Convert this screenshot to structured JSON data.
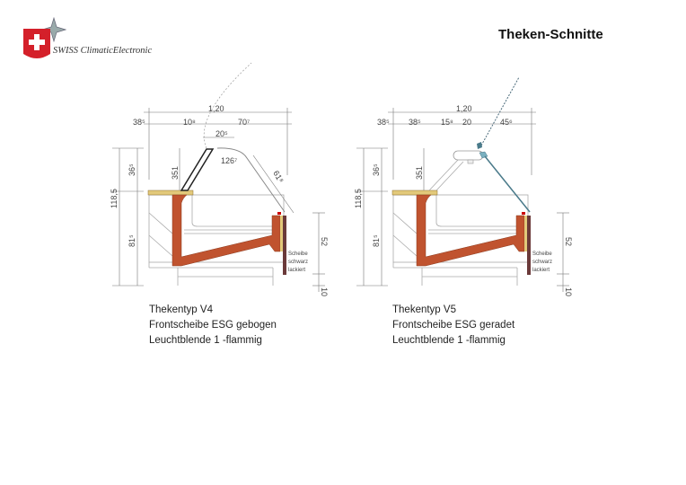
{
  "header": {
    "title": "Theken-Schnitte",
    "brand_name": "SWISS ClimaticElectronic"
  },
  "colors": {
    "frame": "#c0532f",
    "top": "#e2c97a",
    "panel": "#6b3a3a",
    "glass_v5": "#4a7a8a",
    "logo_red": "#d4202a"
  },
  "diagrams": [
    {
      "dims": {
        "total_width": "1,20",
        "overhang": "38⁵",
        "d1": "10⁸",
        "d2": "70⁷",
        "d3": "20⁵",
        "angle": "126⁷",
        "glass": "61⁸",
        "total_height": "118,5",
        "upper_height": "36⁵",
        "lower_height": "81⁵",
        "inner": "351",
        "front_height": "52",
        "foot": "10"
      },
      "note": [
        "Scheibe",
        "schwarz",
        "lackiert"
      ],
      "caption": [
        "Thekentyp V4",
        "Frontscheibe ESG gebogen",
        "Leuchtblende 1 -flammig"
      ]
    },
    {
      "dims": {
        "total_width": "1,20",
        "overhang": "38⁵",
        "d1": "38⁵",
        "d2": "15⁸",
        "d3": "20",
        "d4": "45⁶",
        "total_height": "118,5",
        "upper_height": "36⁵",
        "lower_height": "81⁵",
        "inner": "351",
        "front_height": "52",
        "foot": "10"
      },
      "note": [
        "Scheibe",
        "schwarz",
        "lackiert"
      ],
      "caption": [
        "Thekentyp V5",
        "Frontscheibe ESG geradet",
        "Leuchtblende 1 -flammig"
      ]
    }
  ]
}
